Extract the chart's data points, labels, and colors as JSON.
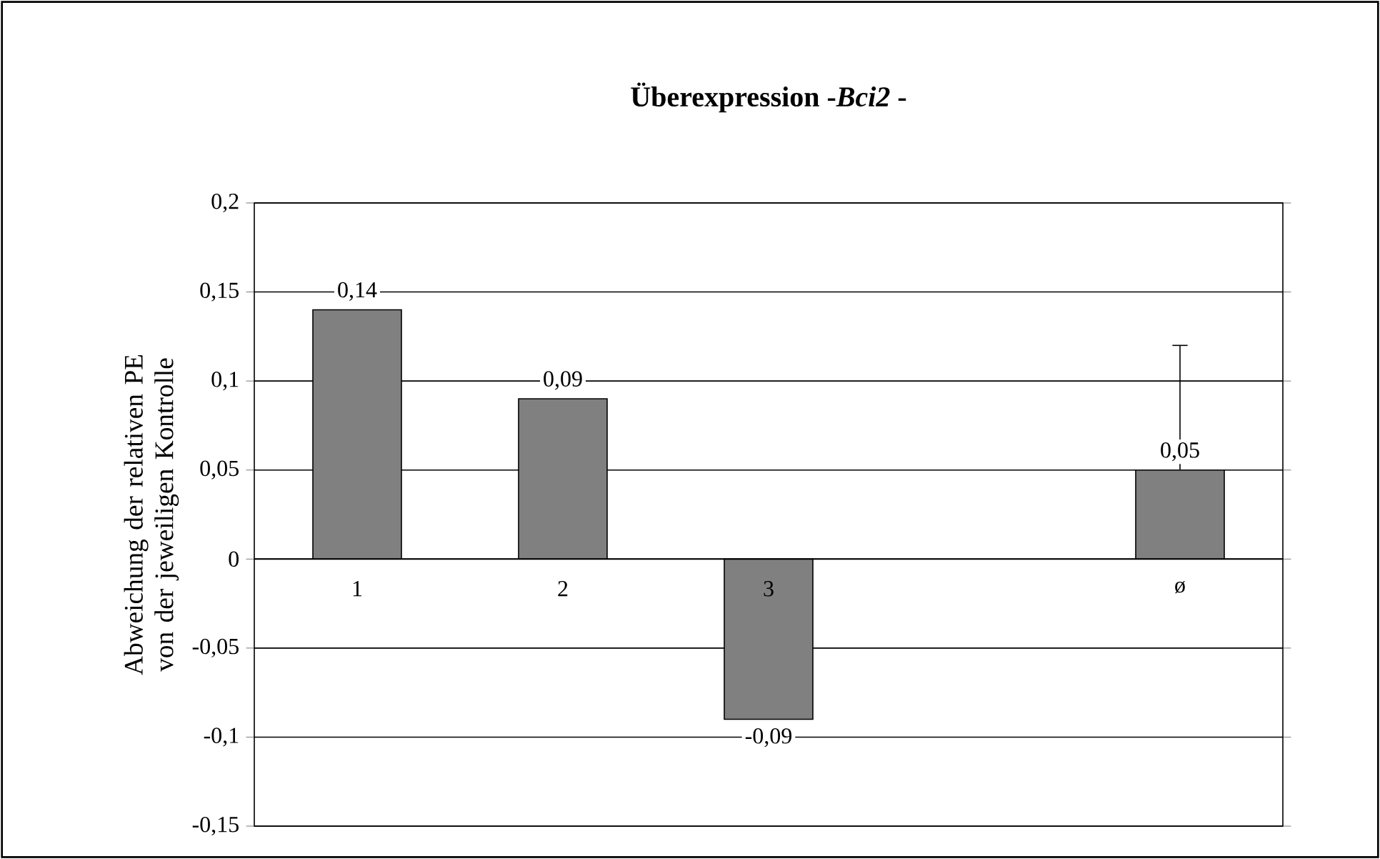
{
  "chart_data": {
    "type": "bar",
    "title": "**Überexpression -*Bci2* -**",
    "ylabel": "Abweichung der relativen PE von der jeweiligen Kontrolle",
    "categories": [
      "1",
      "2",
      "3",
      null,
      "ø"
    ],
    "values": [
      0.14,
      0.09,
      -0.09,
      null,
      0.05
    ],
    "value_labels": [
      "0,14",
      "0,09",
      "-0,09",
      null,
      "0,05"
    ],
    "errors": [
      null,
      null,
      null,
      null,
      [
        0.05,
        0.12
      ]
    ],
    "color": "#808080",
    "ylim": [
      -0.15,
      0.2
    ],
    "yticks": [
      {
        "value": -0.15,
        "label": "-0,15"
      },
      {
        "value": -0.1,
        "label": "-0,1"
      },
      {
        "value": -0.05,
        "label": "-0,05"
      },
      0,
      {
        "value": 0.05,
        "label": "0,05"
      },
      {
        "value": 0.1,
        "label": "0,1"
      },
      {
        "value": 0.15,
        "label": "0,15"
      },
      {
        "value": 0.2,
        "label": "0,2"
      }
    ],
    "grid": "y"
  }
}
